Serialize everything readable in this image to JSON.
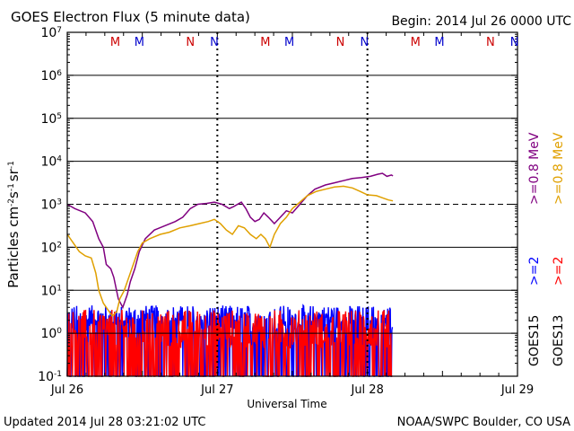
{
  "header": {
    "title": "GOES Electron Flux (5 minute data)",
    "begin": "Begin: 2014 Jul 26 0000 UTC"
  },
  "footer": {
    "updated": "Updated 2014 Jul 28 03:21:02 UTC",
    "credit": "NOAA/SWPC Boulder, CO USA"
  },
  "chart_data": {
    "type": "line",
    "title": "GOES Electron Flux (5 minute data)",
    "xlabel": "Universal Time",
    "ylabel_parts": [
      "Particles cm",
      "-2",
      "s",
      "-1",
      "sr",
      "-1"
    ],
    "ylim_log10": [
      -1,
      7
    ],
    "xlim_days": [
      0,
      3
    ],
    "y_ticks": [
      {
        "base": "10",
        "exp": "7"
      },
      {
        "base": "10",
        "exp": "6"
      },
      {
        "base": "10",
        "exp": "5"
      },
      {
        "base": "10",
        "exp": "4"
      },
      {
        "base": "10",
        "exp": "3"
      },
      {
        "base": "10",
        "exp": "2"
      },
      {
        "base": "10",
        "exp": "1"
      },
      {
        "base": "10",
        "exp": "0"
      },
      {
        "base": "10",
        "exp": "-1"
      }
    ],
    "x_ticks": [
      {
        "day": 0,
        "label": "Jul 26"
      },
      {
        "day": 1,
        "label": "Jul 27"
      },
      {
        "day": 2,
        "label": "Jul 28"
      },
      {
        "day": 3,
        "label": "Jul 29"
      }
    ],
    "threshold_log10": 3,
    "markers": [
      {
        "day": 0.32,
        "label": "M",
        "color": "#cc0000"
      },
      {
        "day": 0.48,
        "label": "M",
        "color": "#0000cc"
      },
      {
        "day": 0.82,
        "label": "N",
        "color": "#cc0000"
      },
      {
        "day": 0.98,
        "label": "N",
        "color": "#0000cc"
      },
      {
        "day": 1.32,
        "label": "M",
        "color": "#cc0000"
      },
      {
        "day": 1.48,
        "label": "M",
        "color": "#0000cc"
      },
      {
        "day": 1.82,
        "label": "N",
        "color": "#cc0000"
      },
      {
        "day": 1.98,
        "label": "N",
        "color": "#0000cc"
      },
      {
        "day": 2.32,
        "label": "M",
        "color": "#cc0000"
      },
      {
        "day": 2.48,
        "label": "M",
        "color": "#0000cc"
      },
      {
        "day": 2.82,
        "label": "N",
        "color": "#cc0000"
      },
      {
        "day": 2.98,
        "label": "N",
        "color": "#0000cc"
      }
    ],
    "right_legend": [
      {
        "text": ">=0.8 MeV",
        "color": "#800080",
        "group": "energy"
      },
      {
        "text": ">=0.8 MeV",
        "color": "#e0a000",
        "group": "energy"
      },
      {
        "text": ">=2",
        "color": "#0000ff",
        "group": "energy"
      },
      {
        "text": ">=2",
        "color": "#ff0000",
        "group": "energy"
      },
      {
        "text": "GOES15",
        "color": "#000000",
        "group": "sat"
      },
      {
        "text": "GOES13",
        "color": "#000000",
        "group": "sat"
      }
    ],
    "series": [
      {
        "name": "GOES15 >=0.8 MeV",
        "color": "#800080",
        "points": [
          [
            0.0,
            3.0
          ],
          [
            0.05,
            2.9
          ],
          [
            0.12,
            2.8
          ],
          [
            0.17,
            2.6
          ],
          [
            0.21,
            2.2
          ],
          [
            0.24,
            2.0
          ],
          [
            0.26,
            1.6
          ],
          [
            0.29,
            1.5
          ],
          [
            0.31,
            1.3
          ],
          [
            0.34,
            0.8
          ],
          [
            0.37,
            0.6
          ],
          [
            0.4,
            0.9
          ],
          [
            0.42,
            1.2
          ],
          [
            0.45,
            1.5
          ],
          [
            0.48,
            1.9
          ],
          [
            0.52,
            2.2
          ],
          [
            0.58,
            2.4
          ],
          [
            0.65,
            2.5
          ],
          [
            0.72,
            2.6
          ],
          [
            0.77,
            2.7
          ],
          [
            0.82,
            2.9
          ],
          [
            0.87,
            3.0
          ],
          [
            0.93,
            3.02
          ],
          [
            0.98,
            3.05
          ],
          [
            1.03,
            3.0
          ],
          [
            1.08,
            2.9
          ],
          [
            1.11,
            2.95
          ],
          [
            1.16,
            3.05
          ],
          [
            1.19,
            2.9
          ],
          [
            1.22,
            2.7
          ],
          [
            1.25,
            2.6
          ],
          [
            1.28,
            2.65
          ],
          [
            1.31,
            2.8
          ],
          [
            1.34,
            2.7
          ],
          [
            1.38,
            2.55
          ],
          [
            1.42,
            2.7
          ],
          [
            1.46,
            2.85
          ],
          [
            1.5,
            2.8
          ],
          [
            1.55,
            3.0
          ],
          [
            1.6,
            3.2
          ],
          [
            1.65,
            3.35
          ],
          [
            1.72,
            3.45
          ],
          [
            1.78,
            3.5
          ],
          [
            1.84,
            3.55
          ],
          [
            1.9,
            3.6
          ],
          [
            1.96,
            3.62
          ],
          [
            2.02,
            3.65
          ],
          [
            2.07,
            3.7
          ],
          [
            2.1,
            3.72
          ],
          [
            2.13,
            3.65
          ],
          [
            2.16,
            3.68
          ],
          [
            2.17,
            3.66
          ]
        ]
      },
      {
        "name": "GOES13 >=0.8 MeV",
        "color": "#e0a000",
        "points": [
          [
            0.0,
            2.3
          ],
          [
            0.04,
            2.1
          ],
          [
            0.08,
            1.9
          ],
          [
            0.12,
            1.8
          ],
          [
            0.16,
            1.75
          ],
          [
            0.19,
            1.4
          ],
          [
            0.21,
            1.0
          ],
          [
            0.24,
            0.7
          ],
          [
            0.27,
            0.55
          ],
          [
            0.3,
            0.4
          ],
          [
            0.33,
            0.5
          ],
          [
            0.35,
            0.8
          ],
          [
            0.38,
            1.0
          ],
          [
            0.41,
            1.3
          ],
          [
            0.44,
            1.6
          ],
          [
            0.47,
            1.9
          ],
          [
            0.5,
            2.1
          ],
          [
            0.55,
            2.2
          ],
          [
            0.62,
            2.3
          ],
          [
            0.68,
            2.35
          ],
          [
            0.75,
            2.45
          ],
          [
            0.82,
            2.5
          ],
          [
            0.88,
            2.55
          ],
          [
            0.94,
            2.6
          ],
          [
            0.98,
            2.65
          ],
          [
            1.02,
            2.55
          ],
          [
            1.06,
            2.4
          ],
          [
            1.1,
            2.3
          ],
          [
            1.14,
            2.5
          ],
          [
            1.18,
            2.45
          ],
          [
            1.22,
            2.3
          ],
          [
            1.26,
            2.2
          ],
          [
            1.29,
            2.3
          ],
          [
            1.32,
            2.2
          ],
          [
            1.35,
            2.0
          ],
          [
            1.38,
            2.3
          ],
          [
            1.42,
            2.55
          ],
          [
            1.46,
            2.7
          ],
          [
            1.5,
            2.9
          ],
          [
            1.55,
            3.05
          ],
          [
            1.6,
            3.2
          ],
          [
            1.66,
            3.3
          ],
          [
            1.72,
            3.35
          ],
          [
            1.78,
            3.4
          ],
          [
            1.84,
            3.42
          ],
          [
            1.9,
            3.38
          ],
          [
            1.95,
            3.3
          ],
          [
            2.0,
            3.22
          ],
          [
            2.06,
            3.2
          ],
          [
            2.1,
            3.15
          ],
          [
            2.14,
            3.1
          ],
          [
            2.17,
            3.08
          ]
        ]
      },
      {
        "name": "GOES15 >=2 MeV",
        "color": "#0000ff",
        "base": 0.35,
        "amp": 0.3,
        "start_day": 0.0,
        "end_day": 2.17
      },
      {
        "name": "GOES13 >=2 MeV",
        "color": "#ff0000",
        "base": 0.1,
        "amp": 0.45,
        "start_day": 0.0,
        "end_day": 2.17
      }
    ]
  }
}
